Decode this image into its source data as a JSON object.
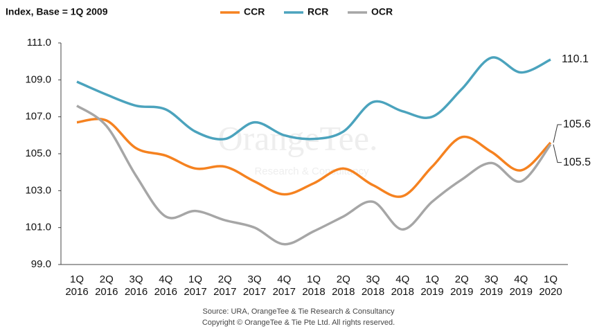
{
  "chart_data": {
    "type": "line",
    "title": "Index, Base = 1Q 2009",
    "categories": [
      "1Q 2016",
      "2Q 2016",
      "3Q 2016",
      "4Q 2016",
      "1Q 2017",
      "2Q 2017",
      "3Q 2017",
      "4Q 2017",
      "1Q 2018",
      "2Q 2018",
      "3Q 2018",
      "4Q 2018",
      "1Q 2019",
      "2Q 2019",
      "3Q 2019",
      "4Q 2019",
      "1Q 2020"
    ],
    "series": [
      {
        "name": "CCR",
        "color": "#f58220",
        "values": [
          106.7,
          106.8,
          105.3,
          104.9,
          104.2,
          104.3,
          103.5,
          102.8,
          103.4,
          104.2,
          103.3,
          102.7,
          104.3,
          105.9,
          105.1,
          104.1,
          105.6
        ]
      },
      {
        "name": "RCR",
        "color": "#4ba3bd",
        "values": [
          108.9,
          108.2,
          107.6,
          107.4,
          106.2,
          105.8,
          106.7,
          106.0,
          105.8,
          106.2,
          107.8,
          107.3,
          107.0,
          108.5,
          110.2,
          109.4,
          110.1
        ]
      },
      {
        "name": "OCR",
        "color": "#a6a6a6",
        "values": [
          107.6,
          106.5,
          103.8,
          101.6,
          101.9,
          101.4,
          101.0,
          100.1,
          100.8,
          101.6,
          102.4,
          100.9,
          102.4,
          103.6,
          104.5,
          103.5,
          105.5
        ]
      }
    ],
    "ylim": [
      99,
      111
    ],
    "yticks": [
      {
        "value": 99,
        "label": "99.0"
      },
      {
        "value": 101,
        "label": "101.0"
      },
      {
        "value": 103,
        "label": "103.0"
      },
      {
        "value": 105,
        "label": "105.0"
      },
      {
        "value": 107,
        "label": "107.0"
      },
      {
        "value": 109,
        "label": "109.0"
      },
      {
        "value": 111,
        "label": "111.0"
      }
    ],
    "grid": false,
    "legend": "top",
    "watermark": [
      "OrangeTee.",
      "Research & Consultancy"
    ],
    "source": [
      "Source: URA, OrangeTee  & Tie Research & Consultancy",
      "Copyright  © OrangeTee & Tie Pte Ltd. All rights reserved."
    ]
  }
}
